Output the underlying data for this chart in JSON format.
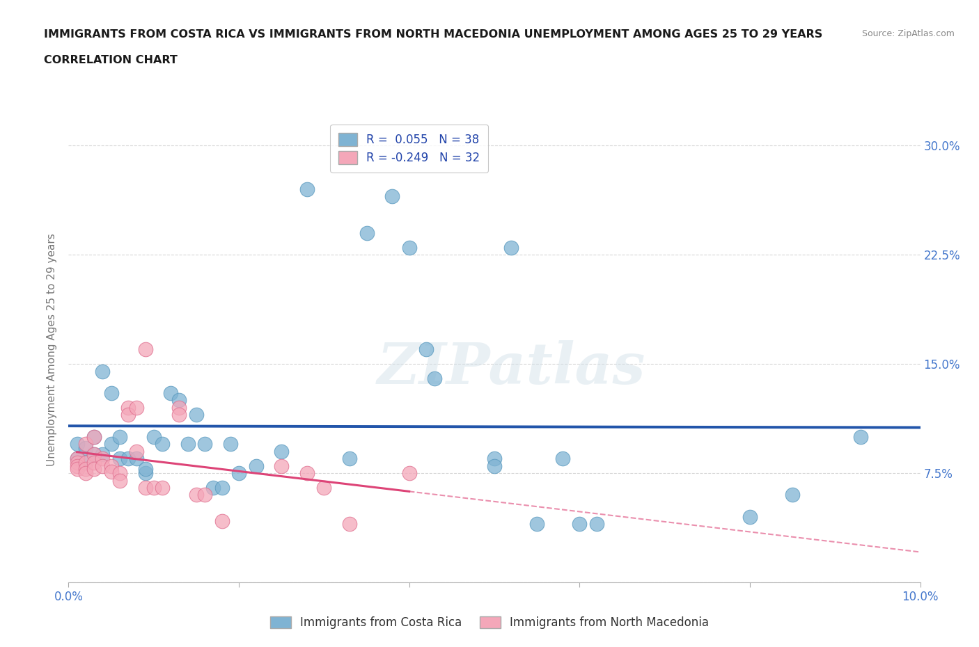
{
  "title_line1": "IMMIGRANTS FROM COSTA RICA VS IMMIGRANTS FROM NORTH MACEDONIA UNEMPLOYMENT AMONG AGES 25 TO 29 YEARS",
  "title_line2": "CORRELATION CHART",
  "source_text": "Source: ZipAtlas.com",
  "ylabel": "Unemployment Among Ages 25 to 29 years",
  "xlim": [
    0.0,
    0.1
  ],
  "ylim": [
    0.0,
    0.32
  ],
  "xticks": [
    0.0,
    0.02,
    0.04,
    0.06,
    0.08,
    0.1
  ],
  "yticks": [
    0.0,
    0.075,
    0.15,
    0.225,
    0.3
  ],
  "ytick_labels": [
    "",
    "7.5%",
    "15.0%",
    "22.5%",
    "30.0%"
  ],
  "xtick_labels": [
    "0.0%",
    "",
    "",
    "",
    "",
    "10.0%"
  ],
  "legend_label_1": "Immigrants from Costa Rica",
  "legend_label_2": "Immigrants from North Macedonia",
  "watermark": "ZIPatlas",
  "blue_scatter": [
    [
      0.001,
      0.095
    ],
    [
      0.001,
      0.085
    ],
    [
      0.002,
      0.092
    ],
    [
      0.002,
      0.082
    ],
    [
      0.003,
      0.1
    ],
    [
      0.003,
      0.088
    ],
    [
      0.004,
      0.145
    ],
    [
      0.004,
      0.088
    ],
    [
      0.005,
      0.13
    ],
    [
      0.005,
      0.095
    ],
    [
      0.006,
      0.1
    ],
    [
      0.006,
      0.085
    ],
    [
      0.007,
      0.085
    ],
    [
      0.008,
      0.085
    ],
    [
      0.009,
      0.075
    ],
    [
      0.009,
      0.078
    ],
    [
      0.01,
      0.1
    ],
    [
      0.011,
      0.095
    ],
    [
      0.012,
      0.13
    ],
    [
      0.013,
      0.125
    ],
    [
      0.014,
      0.095
    ],
    [
      0.015,
      0.115
    ],
    [
      0.016,
      0.095
    ],
    [
      0.017,
      0.065
    ],
    [
      0.018,
      0.065
    ],
    [
      0.019,
      0.095
    ],
    [
      0.02,
      0.075
    ],
    [
      0.022,
      0.08
    ],
    [
      0.025,
      0.09
    ],
    [
      0.028,
      0.27
    ],
    [
      0.033,
      0.085
    ],
    [
      0.035,
      0.24
    ],
    [
      0.038,
      0.265
    ],
    [
      0.04,
      0.23
    ],
    [
      0.042,
      0.16
    ],
    [
      0.043,
      0.14
    ],
    [
      0.05,
      0.085
    ],
    [
      0.052,
      0.23
    ],
    [
      0.055,
      0.04
    ],
    [
      0.058,
      0.085
    ],
    [
      0.06,
      0.04
    ],
    [
      0.062,
      0.04
    ],
    [
      0.08,
      0.045
    ],
    [
      0.085,
      0.06
    ],
    [
      0.093,
      0.1
    ],
    [
      0.05,
      0.08
    ]
  ],
  "pink_scatter": [
    [
      0.001,
      0.085
    ],
    [
      0.001,
      0.082
    ],
    [
      0.001,
      0.08
    ],
    [
      0.001,
      0.078
    ],
    [
      0.002,
      0.095
    ],
    [
      0.002,
      0.082
    ],
    [
      0.002,
      0.078
    ],
    [
      0.002,
      0.075
    ],
    [
      0.003,
      0.1
    ],
    [
      0.003,
      0.088
    ],
    [
      0.003,
      0.082
    ],
    [
      0.003,
      0.078
    ],
    [
      0.004,
      0.085
    ],
    [
      0.004,
      0.08
    ],
    [
      0.005,
      0.08
    ],
    [
      0.005,
      0.076
    ],
    [
      0.006,
      0.075
    ],
    [
      0.006,
      0.07
    ],
    [
      0.007,
      0.12
    ],
    [
      0.007,
      0.115
    ],
    [
      0.008,
      0.12
    ],
    [
      0.008,
      0.09
    ],
    [
      0.009,
      0.16
    ],
    [
      0.009,
      0.065
    ],
    [
      0.01,
      0.065
    ],
    [
      0.011,
      0.065
    ],
    [
      0.013,
      0.12
    ],
    [
      0.013,
      0.115
    ],
    [
      0.015,
      0.06
    ],
    [
      0.016,
      0.06
    ],
    [
      0.018,
      0.042
    ],
    [
      0.025,
      0.08
    ],
    [
      0.028,
      0.075
    ],
    [
      0.03,
      0.065
    ],
    [
      0.033,
      0.04
    ],
    [
      0.04,
      0.075
    ]
  ],
  "blue_color": "#7fb3d3",
  "blue_edge_color": "#5a9abf",
  "pink_color": "#f4a7b9",
  "pink_edge_color": "#e07090",
  "blue_line_color": "#2255aa",
  "pink_line_color": "#dd4477",
  "grid_color": "#cccccc",
  "background_color": "#ffffff",
  "title_color": "#1a1a1a",
  "tick_color": "#4477cc",
  "ylabel_color": "#777777"
}
